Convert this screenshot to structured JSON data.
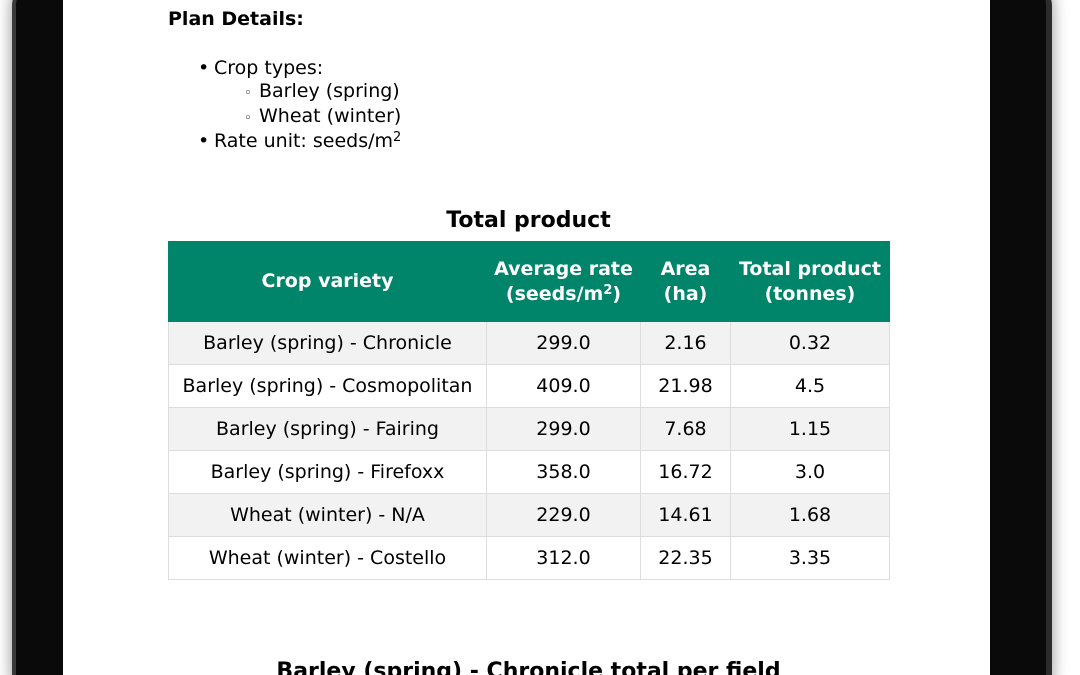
{
  "plan": {
    "heading": "Plan Details:",
    "crop_types_label": "Crop types:",
    "crop_types": [
      "Barley (spring)",
      "Wheat (winter)"
    ],
    "rate_unit_label": "Rate unit: seeds/m",
    "rate_unit_sup": "2"
  },
  "table": {
    "title": "Total product",
    "headers": {
      "variety": "Crop variety",
      "rate_line1": "Average rate",
      "rate_line2": "(seeds/m",
      "rate_sup": "2",
      "rate_close": ")",
      "area_line1": "Area",
      "area_line2": "(ha)",
      "total_line1": "Total product",
      "total_line2": "(tonnes)"
    },
    "rows": [
      [
        "Barley (spring) - Chronicle",
        "299.0",
        "2.16",
        "0.32"
      ],
      [
        "Barley (spring) - Cosmopolitan",
        "409.0",
        "21.98",
        "4.5"
      ],
      [
        "Barley (spring) - Fairing",
        "299.0",
        "7.68",
        "1.15"
      ],
      [
        "Barley (spring) - Firefoxx",
        "358.0",
        "16.72",
        "3.0"
      ],
      [
        "Wheat (winter) - N/A",
        "229.0",
        "14.61",
        "1.68"
      ],
      [
        "Wheat (winter) - Costello",
        "312.0",
        "22.35",
        "3.35"
      ]
    ]
  },
  "next_section": {
    "title": "Barley (spring) - Chronicle total per field"
  }
}
